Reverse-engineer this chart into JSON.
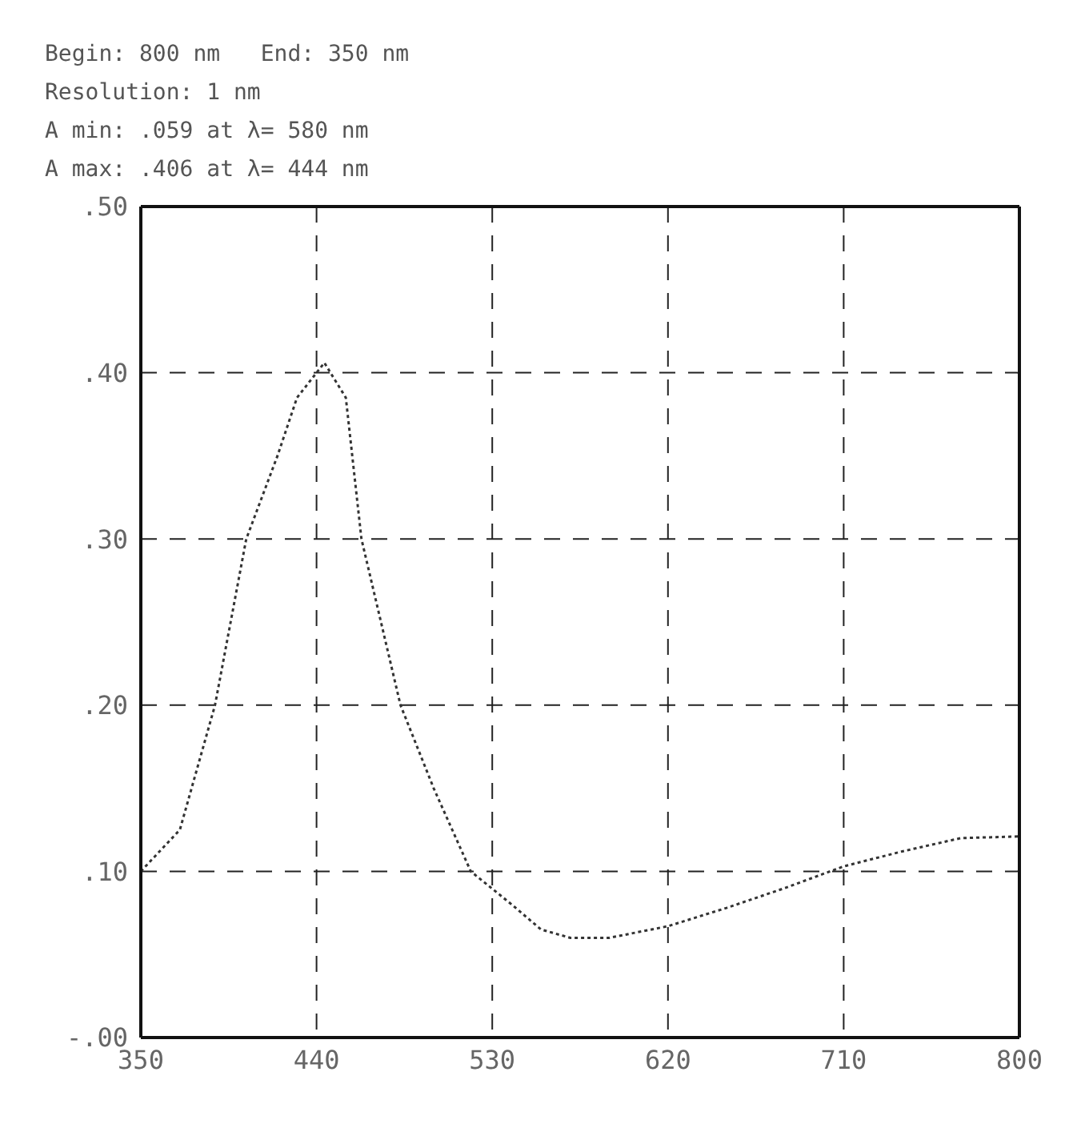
{
  "chart_data": {
    "type": "line",
    "annotations": [
      "Begin: 800 nm   End: 350 nm",
      "Resolution: 1 nm",
      "A min: .059 at λ= 580 nm",
      "A max: .406 at λ= 444 nm"
    ],
    "x": [
      350,
      370,
      388,
      404,
      420,
      430,
      444,
      455,
      463,
      483,
      500,
      519,
      540,
      555,
      570,
      590,
      620,
      650,
      680,
      710,
      740,
      770,
      800
    ],
    "series": [
      {
        "color": "#333333",
        "values": [
          0.1,
          0.125,
          0.2,
          0.3,
          0.35,
          0.385,
          0.406,
          0.385,
          0.3,
          0.2,
          0.15,
          0.1,
          0.08,
          0.065,
          0.06,
          0.06,
          0.067,
          0.078,
          0.09,
          0.103,
          0.112,
          0.12,
          0.121
        ]
      }
    ],
    "xlim": [
      350,
      800
    ],
    "xticks": [
      350,
      440,
      530,
      620,
      710,
      800
    ],
    "ylim": [
      0,
      0.5
    ],
    "yticks": [
      {
        "value": 0,
        "label": "-.00"
      },
      {
        "value": 0.1,
        "label": ".10"
      },
      {
        "value": 0.2,
        "label": ".20"
      },
      {
        "value": 0.3,
        "label": ".30"
      },
      {
        "value": 0.4,
        "label": ".40"
      },
      {
        "value": 0.5,
        "label": ".50"
      }
    ],
    "grid": true,
    "line_style": "dotted",
    "marker": "none"
  }
}
